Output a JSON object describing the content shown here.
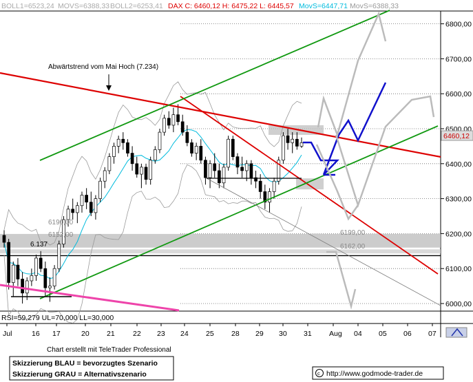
{
  "header": {
    "boll1": "BOLL1=6523,24",
    "movs1": "MOVS=6388,33",
    "boll2": "BOLL2=6253,41",
    "dax": "DAX C: 6460,12 H: 6475,22 L: 6445,57",
    "movs_cyan": "MovS=6447,71",
    "movs_last": "MovS=6388,33"
  },
  "annotations": {
    "trend": "Abwärtstrend vom Mai Hoch (7.234)",
    "lvl_6190": "6190,00",
    "lvl_6152": "6152,00",
    "lvl_6137": "6.137",
    "lvl_6199": "6199,00",
    "lvl_6162": "6162,00",
    "price_tag": "6460,12"
  },
  "rsi": "RSI=59,279 UL=70,000 LL=30,000",
  "footer": {
    "credit": "Chart erstellt mit TeleTrader Professional",
    "legend_blue": "Skizzierung BLAU = bevorzugtes Szenario",
    "legend_grey": "Skizzierung GRAU = Alternativszenario",
    "url": "http://www.godmode-trader.de",
    "copyright_icon": "copyright-icon"
  },
  "colors": {
    "downtrend": "#dd0000",
    "channel": "#119911",
    "support": "#ee44aa",
    "preferred": "#1111cc",
    "alternative": "#bbbbbb",
    "cyan": "#00bbdd"
  },
  "chart_data": {
    "type": "candlestick",
    "title": "DAX",
    "y_ticks": [
      "6800,00",
      "6700,00",
      "6600,00",
      "6500,00",
      "6400,00",
      "6300,00",
      "6200,00",
      "6100,00",
      "6000,00"
    ],
    "y_values": [
      6800,
      6700,
      6600,
      6500,
      6400,
      6300,
      6200,
      6100,
      6000
    ],
    "ylim": [
      5975,
      6840
    ],
    "x_ticks": [
      "Jul",
      "16",
      "17",
      "20",
      "21",
      "22",
      "23",
      "24",
      "25",
      "28",
      "29",
      "30",
      "31",
      "Aug",
      "04",
      "05",
      "06",
      "07"
    ],
    "last_close": 6460.12,
    "levels": [
      6190,
      6152,
      6137,
      6199,
      6162
    ],
    "ohlc": [
      [
        6195,
        6210,
        6160,
        6175
      ],
      [
        6175,
        6185,
        6040,
        6060
      ],
      [
        6060,
        6120,
        6020,
        6110
      ],
      [
        6110,
        6130,
        6050,
        6070
      ],
      [
        6070,
        6090,
        6000,
        6030
      ],
      [
        6030,
        6075,
        6010,
        6065
      ],
      [
        6065,
        6100,
        6050,
        6080
      ],
      [
        6080,
        6140,
        6065,
        6130
      ],
      [
        6130,
        6150,
        6090,
        6100
      ],
      [
        6100,
        6120,
        6020,
        6045
      ],
      [
        6045,
        6075,
        6005,
        6050
      ],
      [
        6050,
        6110,
        6040,
        6100
      ],
      [
        6100,
        6180,
        6090,
        6170
      ],
      [
        6170,
        6250,
        6160,
        6240
      ],
      [
        6240,
        6280,
        6220,
        6270
      ],
      [
        6270,
        6300,
        6240,
        6260
      ],
      [
        6260,
        6290,
        6230,
        6280
      ],
      [
        6280,
        6320,
        6260,
        6310
      ],
      [
        6310,
        6330,
        6270,
        6290
      ],
      [
        6290,
        6320,
        6250,
        6260
      ],
      [
        6260,
        6310,
        6240,
        6300
      ],
      [
        6300,
        6360,
        6290,
        6350
      ],
      [
        6350,
        6390,
        6330,
        6380
      ],
      [
        6380,
        6430,
        6370,
        6420
      ],
      [
        6420,
        6460,
        6400,
        6450
      ],
      [
        6450,
        6480,
        6430,
        6470
      ],
      [
        6470,
        6490,
        6440,
        6460
      ],
      [
        6460,
        6470,
        6420,
        6430
      ],
      [
        6430,
        6450,
        6380,
        6400
      ],
      [
        6400,
        6420,
        6360,
        6370
      ],
      [
        6370,
        6400,
        6330,
        6390
      ],
      [
        6390,
        6400,
        6340,
        6355
      ],
      [
        6355,
        6420,
        6340,
        6410
      ],
      [
        6410,
        6450,
        6400,
        6440
      ],
      [
        6440,
        6500,
        6430,
        6490
      ],
      [
        6490,
        6540,
        6480,
        6530
      ],
      [
        6530,
        6550,
        6500,
        6510
      ],
      [
        6510,
        6560,
        6490,
        6540
      ],
      [
        6540,
        6570,
        6510,
        6520
      ],
      [
        6520,
        6540,
        6480,
        6490
      ],
      [
        6490,
        6510,
        6450,
        6460
      ],
      [
        6460,
        6470,
        6420,
        6430
      ],
      [
        6430,
        6460,
        6410,
        6450
      ],
      [
        6450,
        6470,
        6400,
        6410
      ],
      [
        6410,
        6420,
        6340,
        6360
      ],
      [
        6360,
        6410,
        6330,
        6400
      ],
      [
        6400,
        6430,
        6360,
        6380
      ],
      [
        6380,
        6400,
        6330,
        6345
      ],
      [
        6345,
        6400,
        6330,
        6390
      ],
      [
        6390,
        6480,
        6380,
        6470
      ],
      [
        6470,
        6480,
        6410,
        6420
      ],
      [
        6420,
        6430,
        6370,
        6390
      ],
      [
        6390,
        6420,
        6360,
        6380
      ],
      [
        6380,
        6410,
        6350,
        6400
      ],
      [
        6400,
        6410,
        6340,
        6360
      ],
      [
        6360,
        6380,
        6330,
        6350
      ],
      [
        6350,
        6370,
        6300,
        6320
      ],
      [
        6320,
        6340,
        6270,
        6290
      ],
      [
        6290,
        6330,
        6260,
        6320
      ],
      [
        6320,
        6360,
        6300,
        6350
      ],
      [
        6350,
        6420,
        6340,
        6410
      ],
      [
        6410,
        6490,
        6400,
        6480
      ],
      [
        6480,
        6500,
        6440,
        6460
      ],
      [
        6460,
        6490,
        6430,
        6470
      ],
      [
        6470,
        6490,
        6440,
        6450
      ],
      [
        6450,
        6475,
        6445,
        6460
      ]
    ],
    "series": [
      {
        "name": "Abwärtstrend vom Mai Hoch (7.234)",
        "x": [
          0,
          66
        ],
        "values": [
          6650,
          6400
        ]
      }
    ]
  }
}
